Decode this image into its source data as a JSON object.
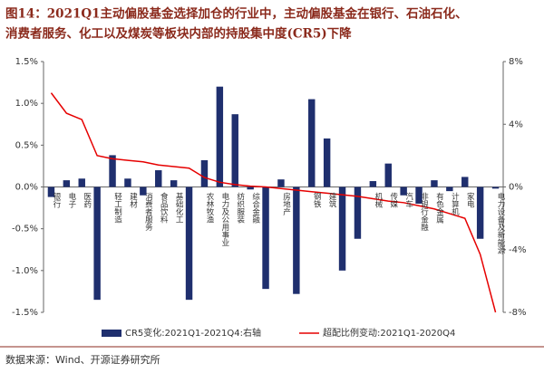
{
  "chart_data": {
    "type": "bar",
    "title": "图14：2021Q1主动偏股基金选择加仓的行业中，主动偏股基金在银行、石油石化、",
    "subtitle": "消费者服务、化工以及煤炭等板块内部的持股集中度(CR5)下降",
    "source": "数据来源：Wind、开源证券研究所",
    "categories": [
      "银行",
      "电子",
      "医药",
      null,
      "轻工制造",
      "建材",
      "消费者服务",
      "食品饮料",
      "基础化工",
      null,
      "农林牧渔",
      "电力及公用事业",
      "纺织服装",
      "综合金融",
      null,
      "房地产",
      null,
      "钢铁",
      "建筑",
      null,
      null,
      "机械",
      "传媒",
      "汽车",
      "非银行金融",
      "有色金属",
      "计算机",
      "家电",
      null,
      "电力设备及新能源"
    ],
    "series": [
      {
        "name": "CR5变化:2021Q1-2021Q4:右轴",
        "type": "bar",
        "color": "#1f2f6e",
        "values": [
          -0.12,
          0.08,
          0.1,
          -1.35,
          0.38,
          0.1,
          -0.1,
          0.2,
          0.08,
          -1.35,
          0.32,
          1.2,
          0.87,
          -0.03,
          -1.22,
          0.09,
          -1.28,
          1.05,
          0.58,
          -1.0,
          -0.62,
          0.07,
          0.28,
          -0.1,
          -0.2,
          0.08,
          -0.05,
          0.12,
          -0.62,
          -0.02
        ]
      },
      {
        "name": "超配比例变动:2021Q1-2020Q4",
        "type": "line",
        "axis": "y2",
        "color": "#e60000",
        "values": [
          6.0,
          4.7,
          4.3,
          2.0,
          1.8,
          1.7,
          1.6,
          1.4,
          1.3,
          1.2,
          0.6,
          0.3,
          0.15,
          0.05,
          0,
          -0.1,
          -0.2,
          -0.3,
          -0.4,
          -0.5,
          -0.6,
          -0.75,
          -0.9,
          -1.0,
          -1.2,
          -1.4,
          -1.7,
          -2.0,
          -4.3,
          -8.0
        ]
      }
    ],
    "ylim": [
      -1.5,
      1.5
    ],
    "yticks": [
      {
        "value": -1.5,
        "label": "-1.5%"
      },
      {
        "value": -1.0,
        "label": "-1.0%"
      },
      {
        "value": -0.5,
        "label": "-0.5%"
      },
      {
        "value": 0,
        "label": "0.0%"
      },
      {
        "value": 0.5,
        "label": "0.5%"
      },
      {
        "value": 1.0,
        "label": "1.0%"
      },
      {
        "value": 1.5,
        "label": "1.5%"
      }
    ],
    "y2lim": [
      -8,
      8
    ],
    "y2ticks": [
      {
        "value": -8,
        "label": "-8%"
      },
      {
        "value": -4,
        "label": "-4%"
      },
      {
        "value": 0,
        "label": "0%"
      },
      {
        "value": 4,
        "label": "4%"
      },
      {
        "value": 8,
        "label": "8%"
      }
    ],
    "grid": false
  }
}
